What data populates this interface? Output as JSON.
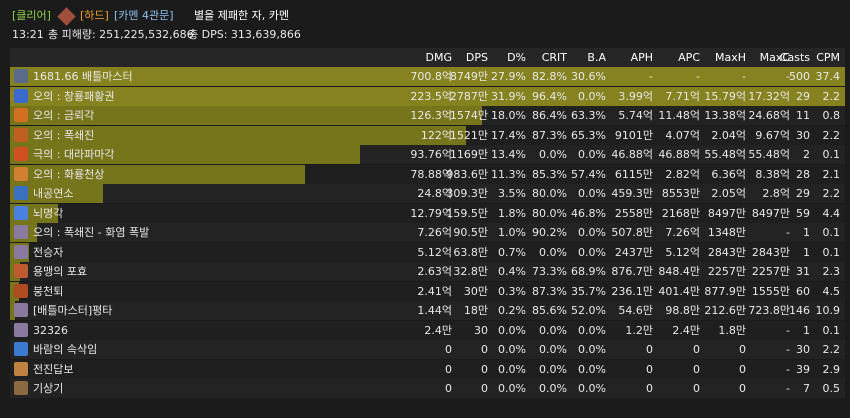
{
  "header": {
    "tags": [
      "[클리어]",
      "[하드]",
      "[카멘 4관문]"
    ],
    "title": "별을 제패한 자, 카멘",
    "time": "13:21",
    "total_damage": "총 피해량: 251,225,532,686",
    "total_dps": "총 DPS: 313,639,866"
  },
  "table": {
    "columns": [
      "DMG",
      "DPS",
      "D%",
      "CRIT",
      "B.A",
      "APH",
      "APC",
      "MaxH",
      "MaxC",
      "Casts",
      "CPM"
    ],
    "rows": [
      [
        "1681.66 배틀마스터",
        "700.8억",
        "8749만",
        "27.9%",
        "82.8%",
        "30.6%",
        "-",
        "-",
        "-",
        "-",
        "500",
        "37.4"
      ],
      [
        "오의 : 창룡패황권",
        "223.5억",
        "2787만",
        "31.9%",
        "96.4%",
        "0.0%",
        "3.99억",
        "7.71억",
        "15.79억",
        "17.32억",
        "29",
        "2.2"
      ],
      [
        "오의 : 금뢰각",
        "126.3억",
        "1574만",
        "18.0%",
        "86.4%",
        "63.3%",
        "5.74억",
        "11.48억",
        "13.38억",
        "24.68억",
        "11",
        "0.8"
      ],
      [
        "오의 : 폭쇄진",
        "122억",
        "1521만",
        "17.4%",
        "87.3%",
        "65.3%",
        "9101만",
        "4.07억",
        "2.04억",
        "9.67억",
        "30",
        "2.2"
      ],
      [
        "극의 : 대라파마각",
        "93.76억",
        "1169만",
        "13.4%",
        "0.0%",
        "0.0%",
        "46.88억",
        "46.88억",
        "55.48억",
        "55.48억",
        "2",
        "0.1"
      ],
      [
        "오의 : 화룡천상",
        "78.88억",
        "983.6만",
        "11.3%",
        "85.3%",
        "57.4%",
        "6115만",
        "2.82억",
        "6.36억",
        "8.38억",
        "28",
        "2.1"
      ],
      [
        "내공연소",
        "24.8억",
        "309.3만",
        "3.5%",
        "80.0%",
        "0.0%",
        "459.3만",
        "8553만",
        "2.05억",
        "2.8억",
        "29",
        "2.2"
      ],
      [
        "뇌명각",
        "12.79억",
        "159.5만",
        "1.8%",
        "80.0%",
        "46.8%",
        "2558만",
        "2168만",
        "8497만",
        "8497만",
        "59",
        "4.4"
      ],
      [
        "오의 : 폭쇄진 - 화염 폭발",
        "7.26억",
        "90.5만",
        "1.0%",
        "90.2%",
        "0.0%",
        "507.8만",
        "7.26억",
        "1348만",
        "-",
        "1",
        "0.1"
      ],
      [
        "전승자",
        "5.12억",
        "63.8만",
        "0.7%",
        "0.0%",
        "0.0%",
        "2437만",
        "5.12억",
        "2843만",
        "2843만",
        "1",
        "0.1"
      ],
      [
        "용맹의 포효",
        "2.63억",
        "32.8만",
        "0.4%",
        "73.3%",
        "68.9%",
        "876.7만",
        "848.4만",
        "2257만",
        "2257만",
        "31",
        "2.3"
      ],
      [
        "붕천퇴",
        "2.41억",
        "30만",
        "0.3%",
        "87.3%",
        "35.7%",
        "236.1만",
        "401.4만",
        "877.9만",
        "1555만",
        "60",
        "4.5"
      ],
      [
        "[배틀마스터]평타",
        "1.44억",
        "18만",
        "0.2%",
        "85.6%",
        "52.0%",
        "54.6만",
        "98.8만",
        "212.6만",
        "723.8만",
        "146",
        "10.9"
      ],
      [
        "32326",
        "2.4만",
        "30",
        "0.0%",
        "0.0%",
        "0.0%",
        "1.2만",
        "2.4만",
        "1.8만",
        "-",
        "1",
        "0.1"
      ],
      [
        "바람의 속삭임",
        "0",
        "0",
        "0.0%",
        "0.0%",
        "0.0%",
        "0",
        "0",
        "0",
        "-",
        "30",
        "2.2"
      ],
      [
        "전진답보",
        "0",
        "0",
        "0.0%",
        "0.0%",
        "0.0%",
        "0",
        "0",
        "0",
        "-",
        "39",
        "2.9"
      ],
      [
        "기상기",
        "0",
        "0",
        "0.0%",
        "0.0%",
        "0.0%",
        "0",
        "0",
        "0",
        "-",
        "7",
        "0.5"
      ]
    ]
  }
}
